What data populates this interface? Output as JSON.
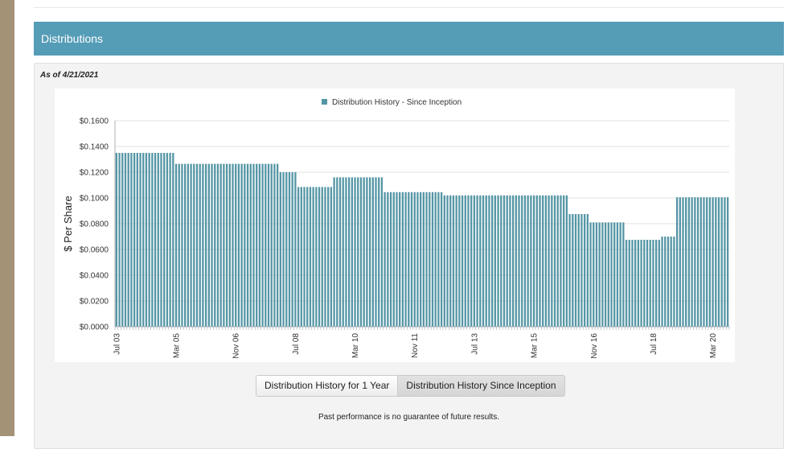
{
  "section": {
    "title": "Distributions"
  },
  "as_of": "As of 4/21/2021",
  "buttons": {
    "one_year": "Distribution History for 1 Year",
    "since_inception": "Distribution History Since Inception"
  },
  "disclaimer": "Past performance is no guarantee of future results.",
  "colors": {
    "bar": "#5596a5",
    "header": "#559cb7"
  },
  "chart_data": {
    "type": "bar",
    "title": "",
    "legend": [
      "Distribution History - Since Inception"
    ],
    "legend_position": "top-center",
    "xlabel": "",
    "ylabel": "$ Per Share",
    "ylim": [
      0,
      0.16
    ],
    "yticks": [
      "$0.0000",
      "$0.0200",
      "$0.0400",
      "$0.0600",
      "$0.0800",
      "$0.1000",
      "$0.1200",
      "$0.1400",
      "$0.1600"
    ],
    "xticks": [
      "Jul 03",
      "Mar 05",
      "Nov 06",
      "Jul 08",
      "Mar 10",
      "Nov 11",
      "Jul 13",
      "Mar 15",
      "Nov 16",
      "Jul 18",
      "Mar 20"
    ],
    "frequency": "monthly",
    "start": "Jul 03",
    "grid": true,
    "series": [
      {
        "name": "Distribution History - Since Inception",
        "segments": [
          {
            "months": 20,
            "value": 0.135
          },
          {
            "months": 35,
            "value": 0.1265
          },
          {
            "months": 6,
            "value": 0.12
          },
          {
            "months": 12,
            "value": 0.1085
          },
          {
            "months": 17,
            "value": 0.116
          },
          {
            "months": 20,
            "value": 0.1045
          },
          {
            "months": 42,
            "value": 0.102
          },
          {
            "months": 7,
            "value": 0.0875
          },
          {
            "months": 12,
            "value": 0.081
          },
          {
            "months": 12,
            "value": 0.0675
          },
          {
            "months": 5,
            "value": 0.07
          },
          {
            "months": 18,
            "value": 0.1005
          }
        ]
      }
    ]
  }
}
